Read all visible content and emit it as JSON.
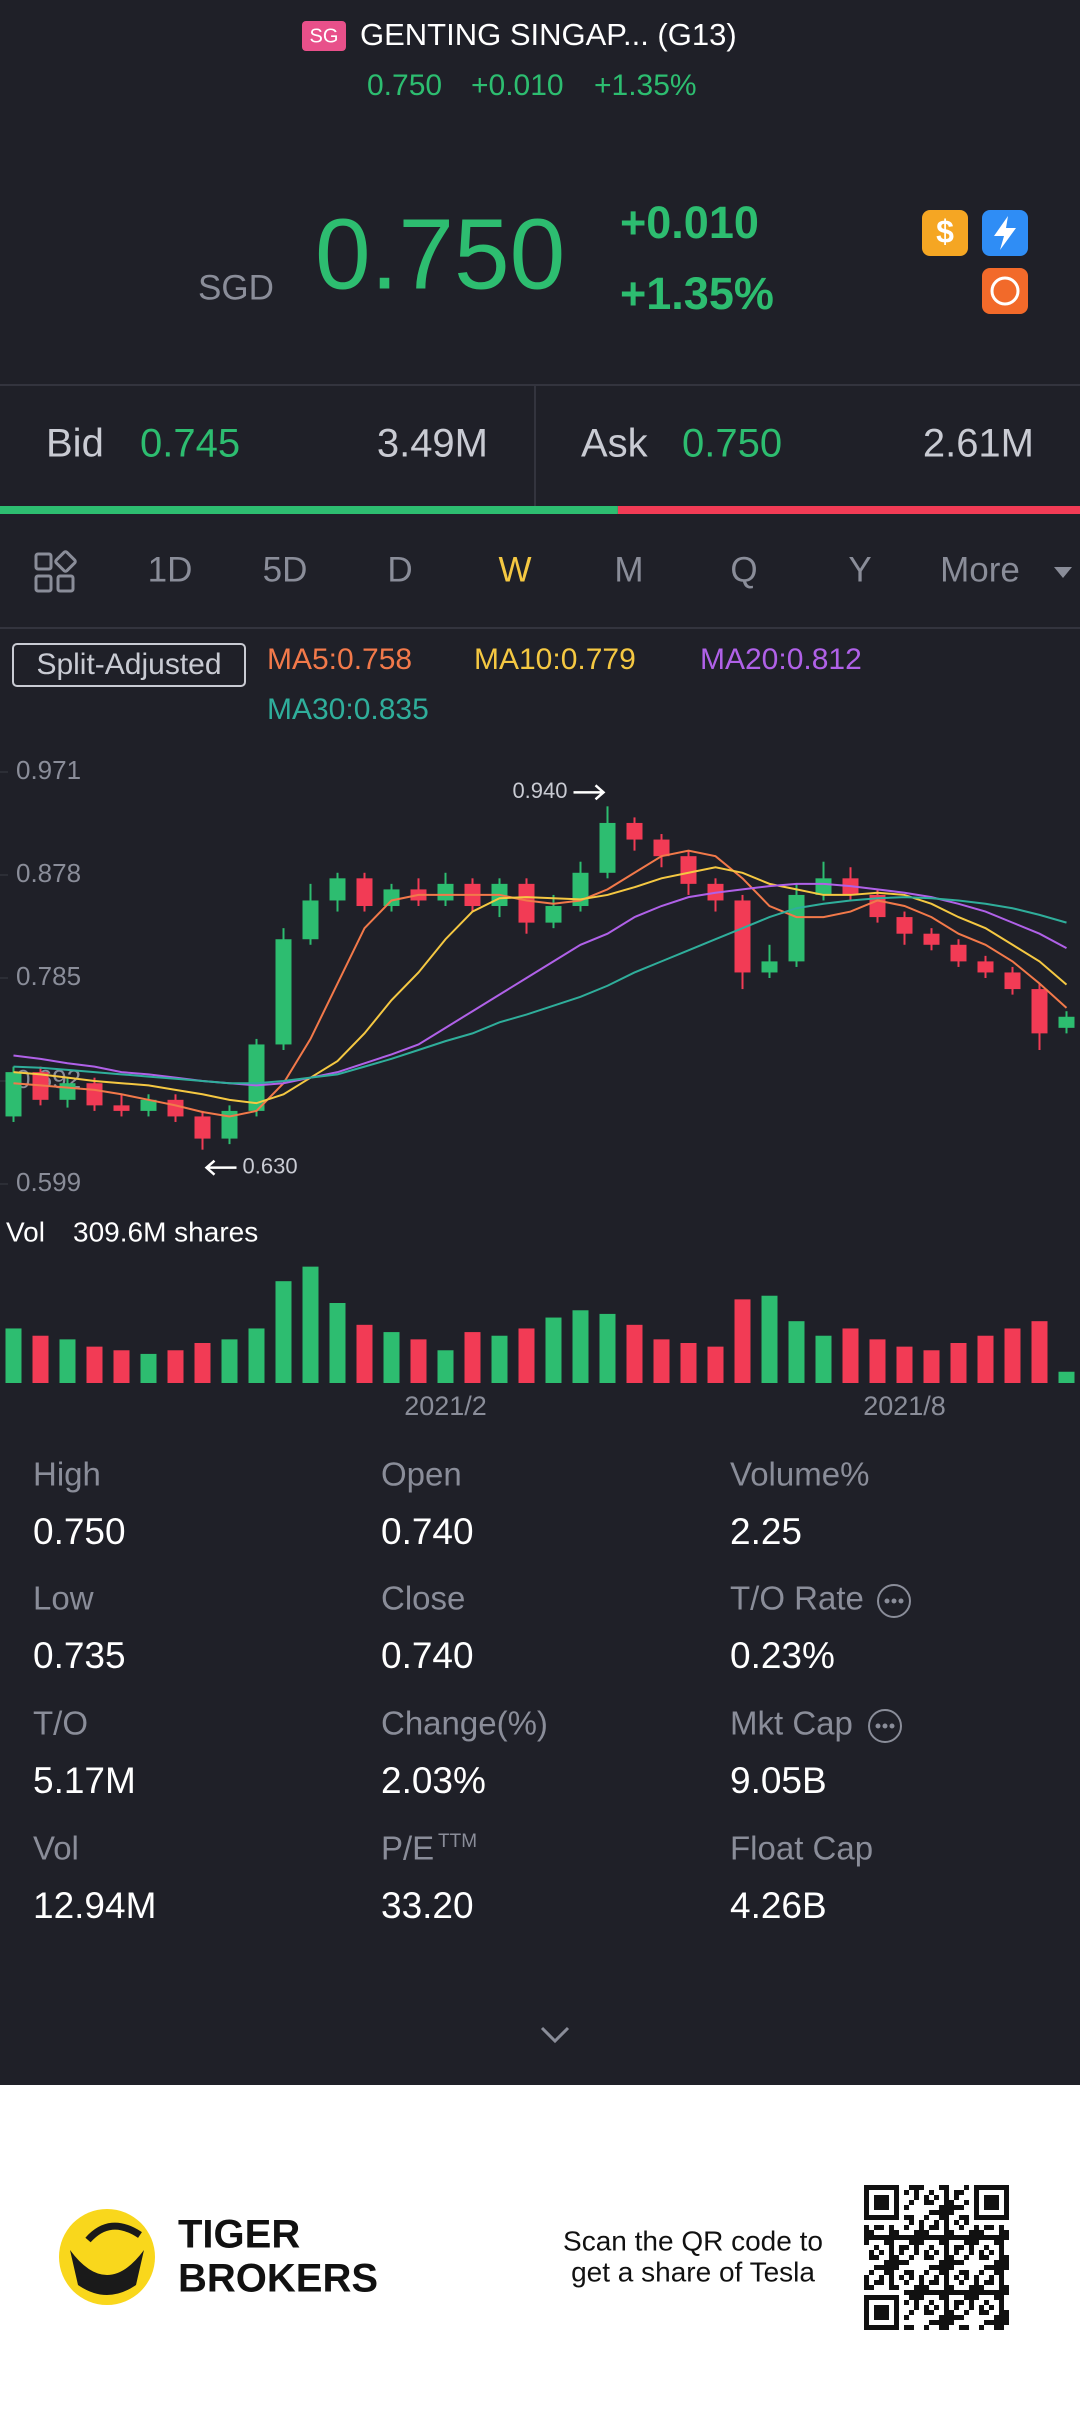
{
  "header": {
    "badge": "SG",
    "title": "GENTING SINGAP... (G13)",
    "price": "0.750",
    "change": "+0.010",
    "change_pct": "+1.35%"
  },
  "quote": {
    "currency": "SGD",
    "price": "0.750",
    "change": "+0.010",
    "change_pct": "+1.35%"
  },
  "bid": {
    "label": "Bid",
    "price": "0.745",
    "size": {
      "value": 3490000,
      "label": "3.49M"
    }
  },
  "ask": {
    "label": "Ask",
    "price": "0.750",
    "size": {
      "value": 2610000,
      "label": "2.61M"
    }
  },
  "tabs": [
    "1D",
    "5D",
    "D",
    "W",
    "M",
    "Q",
    "Y",
    "More"
  ],
  "active_tab": 3,
  "chart_data": {
    "type": "candlestick",
    "adjust_label": "Split-Adjusted",
    "up_color": "#2dbd70",
    "down_color": "#f23b55",
    "ylim": [
      0.599,
      0.971
    ],
    "yticks": [
      0.971,
      0.878,
      0.785,
      0.692,
      0.599
    ],
    "categories": [
      null,
      null,
      null,
      null,
      null,
      null,
      null,
      null,
      null,
      null,
      null,
      null,
      null,
      null,
      null,
      null,
      "2021/2",
      null,
      null,
      null,
      null,
      null,
      null,
      null,
      null,
      null,
      null,
      null,
      null,
      null,
      null,
      null,
      null,
      "2021/8",
      null,
      null,
      null,
      null,
      null,
      null
    ],
    "open": [
      0.66,
      0.7,
      0.675,
      0.69,
      0.67,
      0.665,
      0.675,
      0.66,
      0.64,
      0.665,
      0.725,
      0.82,
      0.855,
      0.875,
      0.85,
      0.865,
      0.855,
      0.87,
      0.85,
      0.87,
      0.835,
      0.85,
      0.88,
      0.925,
      0.91,
      0.895,
      0.87,
      0.855,
      0.79,
      0.8,
      0.86,
      0.875,
      0.86,
      0.84,
      0.825,
      0.815,
      0.8,
      0.79,
      0.775,
      0.74
    ],
    "high": [
      0.705,
      0.705,
      0.695,
      0.695,
      0.68,
      0.68,
      0.68,
      0.665,
      0.67,
      0.73,
      0.83,
      0.87,
      0.88,
      0.88,
      0.87,
      0.875,
      0.88,
      0.875,
      0.875,
      0.875,
      0.86,
      0.89,
      0.94,
      0.93,
      0.915,
      0.9,
      0.875,
      0.86,
      0.815,
      0.87,
      0.89,
      0.885,
      0.865,
      0.845,
      0.83,
      0.82,
      0.805,
      0.795,
      0.78,
      0.755
    ],
    "low": [
      0.655,
      0.67,
      0.668,
      0.665,
      0.66,
      0.66,
      0.655,
      0.63,
      0.635,
      0.66,
      0.72,
      0.815,
      0.845,
      0.845,
      0.845,
      0.85,
      0.85,
      0.845,
      0.84,
      0.825,
      0.83,
      0.845,
      0.875,
      0.9,
      0.885,
      0.86,
      0.845,
      0.775,
      0.785,
      0.795,
      0.855,
      0.855,
      0.835,
      0.815,
      0.81,
      0.795,
      0.785,
      0.77,
      0.72,
      0.735
    ],
    "close": [
      0.7,
      0.675,
      0.69,
      0.67,
      0.665,
      0.675,
      0.66,
      0.64,
      0.665,
      0.725,
      0.82,
      0.855,
      0.875,
      0.85,
      0.865,
      0.855,
      0.87,
      0.85,
      0.87,
      0.835,
      0.85,
      0.88,
      0.925,
      0.91,
      0.895,
      0.87,
      0.855,
      0.79,
      0.8,
      0.86,
      0.875,
      0.86,
      0.84,
      0.825,
      0.815,
      0.8,
      0.79,
      0.775,
      0.735,
      0.75
    ],
    "series": [
      {
        "name": "MA5:0.758",
        "color": "#f2794a",
        "values": [
          0.69,
          0.688,
          0.686,
          0.684,
          0.68,
          0.675,
          0.67,
          0.664,
          0.66,
          0.665,
          0.69,
          0.73,
          0.78,
          0.83,
          0.855,
          0.86,
          0.86,
          0.86,
          0.86,
          0.855,
          0.852,
          0.855,
          0.865,
          0.88,
          0.895,
          0.9,
          0.895,
          0.875,
          0.85,
          0.84,
          0.84,
          0.845,
          0.855,
          0.85,
          0.84,
          0.825,
          0.815,
          0.8,
          0.78,
          0.758
        ]
      },
      {
        "name": "MA10:0.779",
        "color": "#f5c842",
        "values": [
          0.7,
          0.698,
          0.695,
          0.692,
          0.69,
          0.688,
          0.684,
          0.68,
          0.675,
          0.672,
          0.68,
          0.695,
          0.71,
          0.735,
          0.765,
          0.79,
          0.82,
          0.845,
          0.857,
          0.858,
          0.857,
          0.856,
          0.86,
          0.867,
          0.875,
          0.88,
          0.885,
          0.88,
          0.87,
          0.865,
          0.86,
          0.86,
          0.862,
          0.86,
          0.852,
          0.84,
          0.83,
          0.815,
          0.8,
          0.779
        ]
      },
      {
        "name": "MA20:0.812",
        "color": "#b061e8",
        "values": [
          0.715,
          0.712,
          0.708,
          0.705,
          0.7,
          0.698,
          0.695,
          0.692,
          0.69,
          0.688,
          0.69,
          0.695,
          0.7,
          0.708,
          0.716,
          0.725,
          0.74,
          0.755,
          0.77,
          0.785,
          0.8,
          0.815,
          0.825,
          0.84,
          0.85,
          0.858,
          0.862,
          0.865,
          0.868,
          0.87,
          0.87,
          0.868,
          0.865,
          0.862,
          0.858,
          0.852,
          0.845,
          0.835,
          0.825,
          0.812
        ]
      },
      {
        "name": "MA30:0.835",
        "color": "#2fae9b",
        "values": [
          0.705,
          0.704,
          0.702,
          0.7,
          0.698,
          0.696,
          0.694,
          0.692,
          0.69,
          0.69,
          0.692,
          0.695,
          0.698,
          0.705,
          0.712,
          0.72,
          0.728,
          0.735,
          0.745,
          0.752,
          0.76,
          0.768,
          0.778,
          0.79,
          0.8,
          0.81,
          0.82,
          0.83,
          0.84,
          0.848,
          0.852,
          0.855,
          0.857,
          0.858,
          0.857,
          0.855,
          0.852,
          0.848,
          0.842,
          0.835
        ]
      }
    ],
    "annotations": [
      {
        "label": "0.940"
      },
      {
        "label": "0.630"
      }
    ],
    "volume": {
      "label": "Vol",
      "value_label": "309.6M shares",
      "ylim": [
        0,
        3300
      ],
      "values": [
        1500,
        1300,
        1200,
        1000,
        900,
        800,
        900,
        1100,
        1200,
        1500,
        2800,
        3200,
        2200,
        1600,
        1400,
        1200,
        900,
        1400,
        1300,
        1500,
        1800,
        2000,
        1900,
        1600,
        1200,
        1100,
        1000,
        2300,
        2400,
        1700,
        1300,
        1500,
        1200,
        1000,
        900,
        1100,
        1300,
        1500,
        1700,
        309.6
      ]
    }
  },
  "stats": [
    {
      "label": "High",
      "value": "0.750"
    },
    {
      "label": "Open",
      "value": "0.740"
    },
    {
      "label": "Volume%",
      "value": "2.25"
    },
    {
      "label": "Low",
      "value": "0.735"
    },
    {
      "label": "Close",
      "value": "0.740"
    },
    {
      "label": "T/O Rate",
      "value": "0.23%"
    },
    {
      "label": "T/O",
      "value": "5.17M"
    },
    {
      "label": "Change(%)",
      "value": "2.03%"
    },
    {
      "label": "Mkt Cap",
      "value": "9.05B"
    },
    {
      "label": "Vol",
      "value": "12.94M"
    },
    {
      "label": "P/E",
      "sup": "TTM",
      "value": "33.20"
    },
    {
      "label": "Float Cap",
      "value": "4.26B"
    }
  ],
  "footer": {
    "brand": [
      "TIGER",
      "BROKERS"
    ],
    "qr_text": [
      "Scan the QR code to",
      "get a share of Tesla"
    ]
  }
}
